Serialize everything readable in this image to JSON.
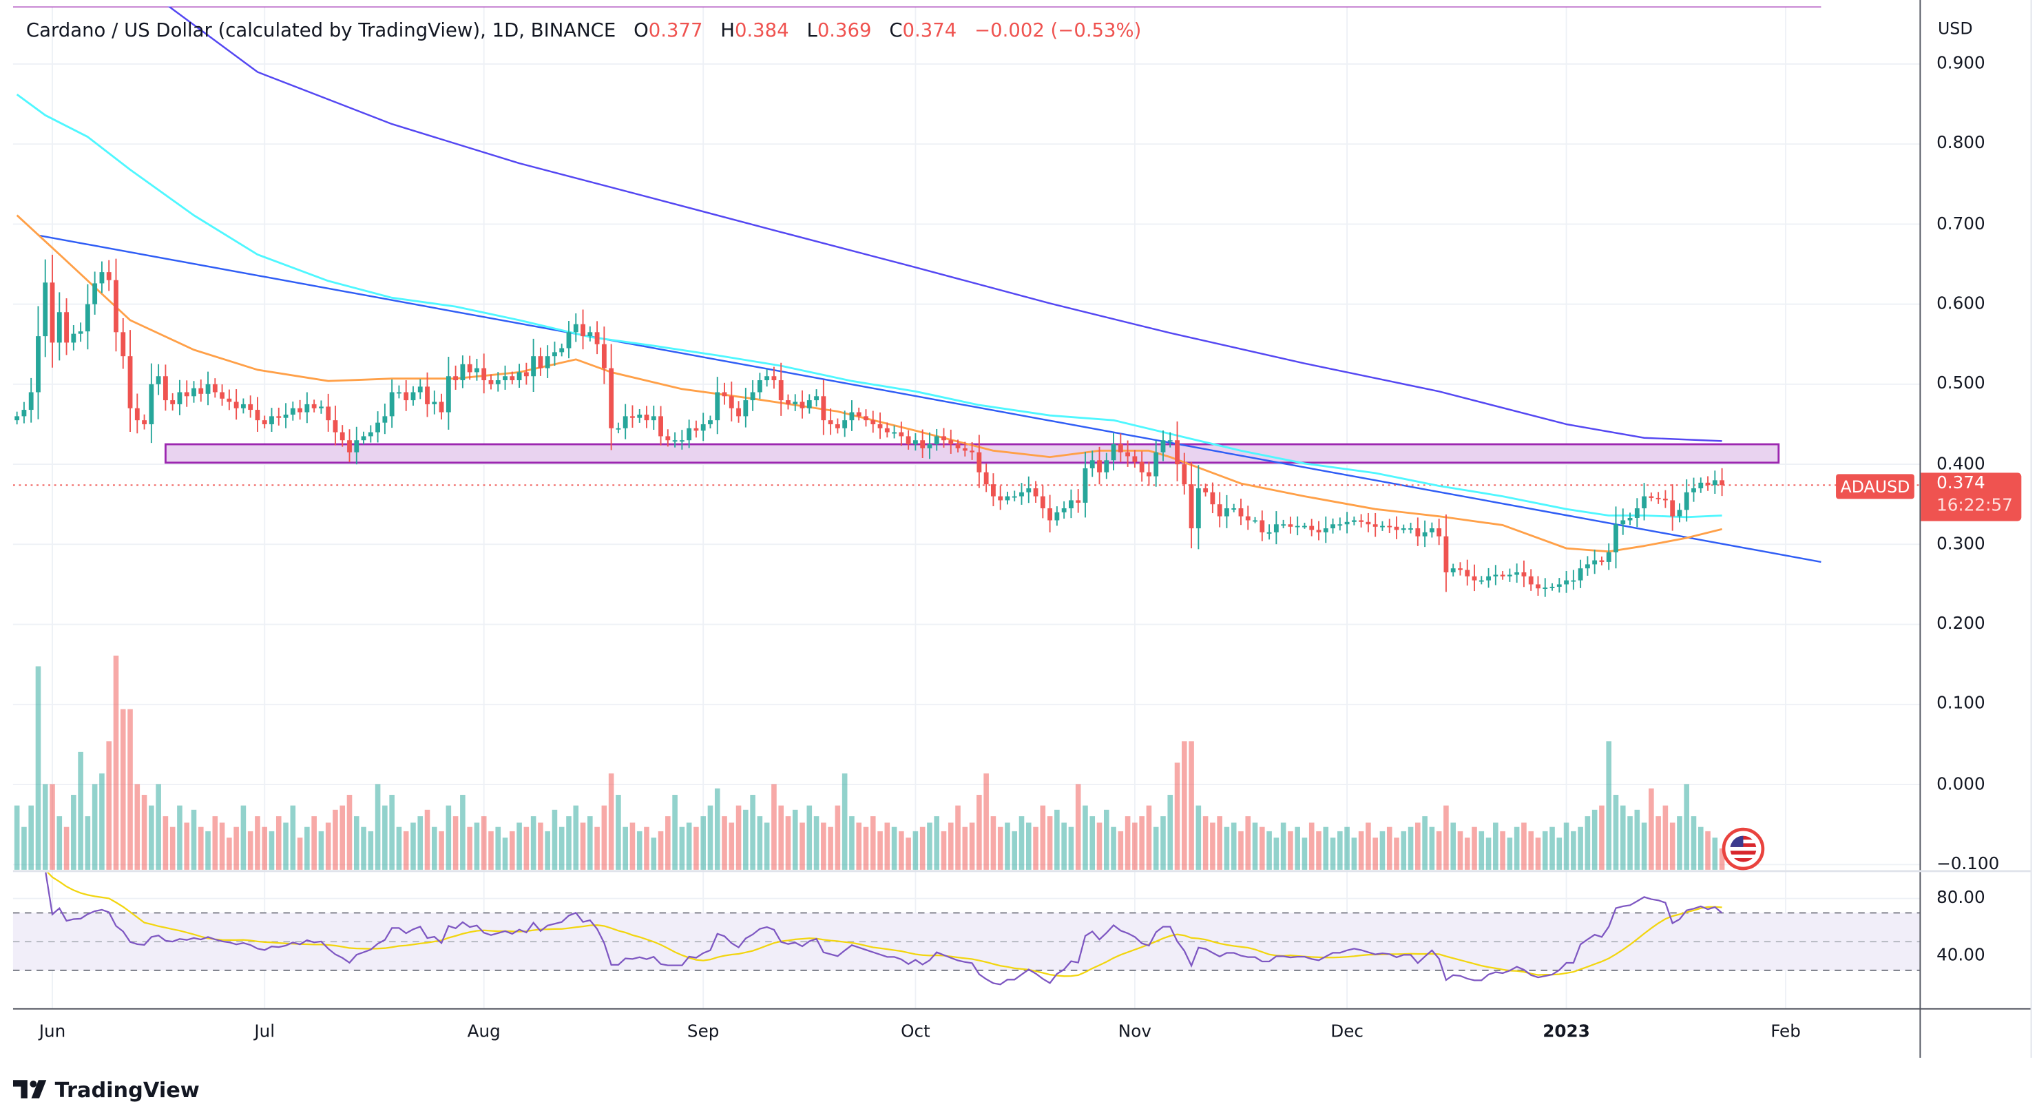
{
  "header": {
    "symbol_title": "Cardano / US Dollar (calculated by TradingView), 1D, BINANCE",
    "o_label": "O",
    "o": "0.377",
    "h_label": "H",
    "h": "0.384",
    "l_label": "L",
    "l": "0.369",
    "c_label": "C",
    "c": "0.374",
    "change": "−0.002 (−0.53%)"
  },
  "price_axis": {
    "currency": "USD",
    "ticks": [
      "0.900",
      "0.800",
      "0.700",
      "0.600",
      "0.500",
      "0.400",
      "0.300",
      "0.200",
      "0.100",
      "0.000",
      "−0.100"
    ]
  },
  "rsi_axis": {
    "ticks": [
      "80.00",
      "40.00"
    ]
  },
  "time_axis": [
    {
      "label": "Jun",
      "date": "2022-06-01"
    },
    {
      "label": "Jul",
      "date": "2022-07-01"
    },
    {
      "label": "Aug",
      "date": "2022-08-01"
    },
    {
      "label": "Sep",
      "date": "2022-09-01"
    },
    {
      "label": "Oct",
      "date": "2022-10-01"
    },
    {
      "label": "Nov",
      "date": "2022-11-01"
    },
    {
      "label": "Dec",
      "date": "2022-12-01"
    },
    {
      "label": "2023",
      "date": "2023-01-01",
      "bold": true
    },
    {
      "label": "Feb",
      "date": "2023-02-01"
    }
  ],
  "last_price": {
    "symbol": "ADAUSD",
    "price": "0.374",
    "countdown": "16:22:57"
  },
  "colors": {
    "up": "#26a69a",
    "down": "#ef5350",
    "ma_fast": "#ffa048",
    "ma_mid": "#4ff7ff",
    "ma_slow": "#5447f2",
    "trendline": "#2f5df5",
    "zone_border": "#9c27b0",
    "zone_fill": "#e9d3f0",
    "rsi": "#7e57c2",
    "rsi_ma": "#f2d50f",
    "rsi_band": "#f1eef9"
  },
  "icons": {
    "country_flag": "us-flag-icon",
    "logo": "tradingview-logo-icon"
  },
  "branding": {
    "logo_text": "TradingView"
  },
  "chart_data": {
    "type": "candlestick",
    "ylim": [
      -0.1,
      0.9
    ],
    "candles_by_month": [
      {
        "month": "2022-05",
        "first_day": 27,
        "close": [
          0.46,
          0.468,
          0.49,
          0.56,
          0.627
        ],
        "volume": [
          30,
          20,
          30,
          95,
          40
        ]
      },
      {
        "month": "2022-06",
        "first_day": 1,
        "close": [
          0.552,
          0.59,
          0.552,
          0.563,
          0.566,
          0.6,
          0.626,
          0.64,
          0.63,
          0.565,
          0.535,
          0.47,
          0.455,
          0.45,
          0.5,
          0.51,
          0.48,
          0.475,
          0.49,
          0.485,
          0.495,
          0.488,
          0.5,
          0.49,
          0.482,
          0.478,
          0.47,
          0.475,
          0.468,
          0.455
        ],
        "volume": [
          40,
          25,
          20,
          35,
          55,
          25,
          40,
          45,
          60,
          100,
          75,
          75,
          40,
          35,
          30,
          40,
          25,
          20,
          30,
          22,
          28,
          20,
          18,
          25,
          22,
          15,
          20,
          30,
          18,
          25
        ]
      },
      {
        "month": "2022-07",
        "first_day": 1,
        "close": [
          0.45,
          0.46,
          0.458,
          0.462,
          0.47,
          0.465,
          0.475,
          0.47,
          0.472,
          0.455,
          0.44,
          0.43,
          0.415,
          0.43,
          0.435,
          0.44,
          0.452,
          0.46,
          0.49,
          0.49,
          0.48,
          0.49,
          0.497,
          0.475,
          0.478,
          0.465,
          0.51,
          0.505,
          0.525,
          0.515,
          0.52
        ],
        "volume": [
          20,
          18,
          25,
          22,
          30,
          15,
          20,
          25,
          18,
          22,
          28,
          30,
          35,
          25,
          20,
          18,
          40,
          30,
          35,
          20,
          18,
          22,
          25,
          28,
          20,
          18,
          30,
          25,
          35,
          20,
          22
        ]
      },
      {
        "month": "2022-08",
        "first_day": 1,
        "close": [
          0.505,
          0.5,
          0.505,
          0.51,
          0.505,
          0.515,
          0.51,
          0.535,
          0.52,
          0.535,
          0.54,
          0.545,
          0.565,
          0.575,
          0.56,
          0.565,
          0.55,
          0.52,
          0.445,
          0.445,
          0.46,
          0.458,
          0.462,
          0.455,
          0.46,
          0.435,
          0.43,
          0.43,
          0.43,
          0.445,
          0.442
        ],
        "volume": [
          25,
          18,
          20,
          15,
          18,
          22,
          20,
          25,
          22,
          18,
          28,
          20,
          25,
          30,
          22,
          25,
          20,
          30,
          45,
          35,
          20,
          22,
          18,
          20,
          15,
          18,
          25,
          35,
          20,
          22,
          20
        ]
      },
      {
        "month": "2022-09",
        "first_day": 1,
        "close": [
          0.45,
          0.455,
          0.49,
          0.485,
          0.47,
          0.46,
          0.48,
          0.49,
          0.505,
          0.51,
          0.505,
          0.48,
          0.475,
          0.478,
          0.47,
          0.48,
          0.485,
          0.455,
          0.45,
          0.445,
          0.455,
          0.465,
          0.46,
          0.455,
          0.45,
          0.445,
          0.44,
          0.44,
          0.435,
          0.425
        ],
        "volume": [
          25,
          30,
          38,
          25,
          22,
          30,
          28,
          35,
          25,
          22,
          40,
          30,
          25,
          28,
          22,
          30,
          25,
          22,
          20,
          30,
          45,
          25,
          22,
          20,
          25,
          18,
          22,
          20,
          18,
          15
        ]
      },
      {
        "month": "2022-10",
        "first_day": 1,
        "close": [
          0.43,
          0.42,
          0.425,
          0.435,
          0.43,
          0.425,
          0.42,
          0.417,
          0.415,
          0.39,
          0.375,
          0.36,
          0.355,
          0.36,
          0.36,
          0.365,
          0.37,
          0.36,
          0.345,
          0.33,
          0.34,
          0.345,
          0.355,
          0.352,
          0.395,
          0.405,
          0.39,
          0.405,
          0.425,
          0.415,
          0.41
        ],
        "volume": [
          18,
          20,
          22,
          25,
          18,
          22,
          30,
          20,
          22,
          35,
          45,
          25,
          20,
          22,
          18,
          25,
          22,
          20,
          30,
          25,
          28,
          22,
          20,
          40,
          30,
          25,
          22,
          28,
          20,
          18,
          25
        ]
      },
      {
        "month": "2022-11",
        "first_day": 1,
        "close": [
          0.403,
          0.39,
          0.385,
          0.415,
          0.43,
          0.43,
          0.4,
          0.375,
          0.32,
          0.37,
          0.365,
          0.35,
          0.335,
          0.345,
          0.345,
          0.335,
          0.33,
          0.33,
          0.315,
          0.315,
          0.325,
          0.325,
          0.322,
          0.323,
          0.323,
          0.318,
          0.315,
          0.32,
          0.325,
          0.325
        ],
        "volume": [
          22,
          25,
          30,
          20,
          25,
          35,
          50,
          60,
          60,
          30,
          25,
          22,
          25,
          20,
          22,
          18,
          25,
          22,
          20,
          18,
          15,
          22,
          18,
          20,
          15,
          22,
          18,
          20,
          15,
          18
        ]
      },
      {
        "month": "2022-12",
        "first_day": 1,
        "close": [
          0.328,
          0.33,
          0.328,
          0.325,
          0.322,
          0.323,
          0.322,
          0.318,
          0.32,
          0.32,
          0.31,
          0.315,
          0.32,
          0.31,
          0.265,
          0.27,
          0.268,
          0.26,
          0.255,
          0.255,
          0.26,
          0.262,
          0.26,
          0.262,
          0.265,
          0.26,
          0.25,
          0.245,
          0.246,
          0.247,
          0.25
        ],
        "volume": [
          20,
          15,
          18,
          22,
          15,
          18,
          20,
          15,
          18,
          20,
          22,
          25,
          20,
          18,
          30,
          22,
          18,
          15,
          20,
          18,
          15,
          22,
          18,
          15,
          20,
          22,
          18,
          15,
          18,
          20,
          15
        ]
      },
      {
        "month": "2023-01",
        "first_day": 1,
        "close": [
          0.255,
          0.255,
          0.27,
          0.275,
          0.28,
          0.278,
          0.29,
          0.325,
          0.33,
          0.333,
          0.345,
          0.36,
          0.358,
          0.357,
          0.355,
          0.335,
          0.343,
          0.365,
          0.37,
          0.377,
          0.374,
          0.38,
          0.374
        ],
        "volume": [
          22,
          18,
          20,
          25,
          28,
          30,
          60,
          35,
          30,
          25,
          28,
          22,
          38,
          25,
          30,
          22,
          25,
          40,
          25,
          20,
          18,
          15,
          10
        ]
      }
    ],
    "moving_averages": [
      {
        "color": "#ffa048",
        "points": [
          [
            "2022-05-27",
            0.711
          ],
          [
            "2022-06-03",
            0.654
          ],
          [
            "2022-06-12",
            0.58
          ],
          [
            "2022-06-21",
            0.543
          ],
          [
            "2022-06-30",
            0.518
          ],
          [
            "2022-07-10",
            0.504
          ],
          [
            "2022-07-19",
            0.507
          ],
          [
            "2022-07-28",
            0.507
          ],
          [
            "2022-08-06",
            0.515
          ],
          [
            "2022-08-14",
            0.531
          ],
          [
            "2022-08-19",
            0.515
          ],
          [
            "2022-08-29",
            0.494
          ],
          [
            "2022-09-08",
            0.482
          ],
          [
            "2022-09-20",
            0.466
          ],
          [
            "2022-10-01",
            0.442
          ],
          [
            "2022-10-12",
            0.417
          ],
          [
            "2022-10-20",
            0.409
          ],
          [
            "2022-10-27",
            0.417
          ],
          [
            "2022-11-03",
            0.417
          ],
          [
            "2022-11-06",
            0.409
          ],
          [
            "2022-11-16",
            0.376
          ],
          [
            "2022-11-25",
            0.36
          ],
          [
            "2022-12-05",
            0.344
          ],
          [
            "2022-12-14",
            0.335
          ],
          [
            "2022-12-23",
            0.324
          ],
          [
            "2023-01-01",
            0.295
          ],
          [
            "2023-01-07",
            0.291
          ],
          [
            "2023-01-12",
            0.298
          ],
          [
            "2023-01-18",
            0.308
          ],
          [
            "2023-01-23",
            0.319
          ]
        ]
      },
      {
        "color": "#4ff7ff",
        "points": [
          [
            "2022-05-27",
            0.862
          ],
          [
            "2022-05-31",
            0.836
          ],
          [
            "2022-06-06",
            0.809
          ],
          [
            "2022-06-12",
            0.768
          ],
          [
            "2022-06-21",
            0.711
          ],
          [
            "2022-06-30",
            0.662
          ],
          [
            "2022-07-10",
            0.629
          ],
          [
            "2022-07-19",
            0.608
          ],
          [
            "2022-07-28",
            0.597
          ],
          [
            "2022-08-06",
            0.58
          ],
          [
            "2022-08-16",
            0.559
          ],
          [
            "2022-08-25",
            0.548
          ],
          [
            "2022-09-03",
            0.536
          ],
          [
            "2022-09-12",
            0.523
          ],
          [
            "2022-09-22",
            0.504
          ],
          [
            "2022-10-01",
            0.491
          ],
          [
            "2022-10-10",
            0.474
          ],
          [
            "2022-10-20",
            0.461
          ],
          [
            "2022-10-29",
            0.455
          ],
          [
            "2022-11-06",
            0.438
          ],
          [
            "2022-11-16",
            0.417
          ],
          [
            "2022-11-25",
            0.401
          ],
          [
            "2022-12-05",
            0.389
          ],
          [
            "2022-12-14",
            0.373
          ],
          [
            "2022-12-23",
            0.36
          ],
          [
            "2023-01-01",
            0.344
          ],
          [
            "2023-01-07",
            0.336
          ],
          [
            "2023-01-12",
            0.336
          ],
          [
            "2023-01-18",
            0.334
          ],
          [
            "2023-01-23",
            0.336
          ]
        ]
      },
      {
        "color": "#5447f2",
        "points": [
          [
            "2022-06-17",
            0.975
          ],
          [
            "2022-06-30",
            0.89
          ],
          [
            "2022-07-19",
            0.825
          ],
          [
            "2022-08-06",
            0.776
          ],
          [
            "2022-08-25",
            0.732
          ],
          [
            "2022-09-12",
            0.69
          ],
          [
            "2022-10-01",
            0.646
          ],
          [
            "2022-10-20",
            0.601
          ],
          [
            "2022-11-06",
            0.564
          ],
          [
            "2022-11-25",
            0.526
          ],
          [
            "2022-12-14",
            0.491
          ],
          [
            "2023-01-01",
            0.45
          ],
          [
            "2023-01-12",
            0.433
          ],
          [
            "2023-01-23",
            0.429
          ]
        ]
      }
    ],
    "drawings": {
      "trendline": {
        "color": "#2f5df5",
        "from": [
          "2022-05-30",
          0.686
        ],
        "to": [
          "2023-02-06",
          0.278
        ]
      },
      "zone": {
        "from": "2022-06-17",
        "to": "2023-01-31",
        "top": 0.425,
        "bottom": 0.402
      },
      "horizontal_line": {
        "price": 0.972,
        "from": "2022-05-27",
        "to": "2023-02-06",
        "color": "#9c27b0"
      },
      "last_price_line": {
        "price": 0.374
      }
    },
    "rsi": {
      "period": 14,
      "ma_period": 14,
      "upper": 70,
      "middle": 50,
      "lower": 30
    }
  }
}
